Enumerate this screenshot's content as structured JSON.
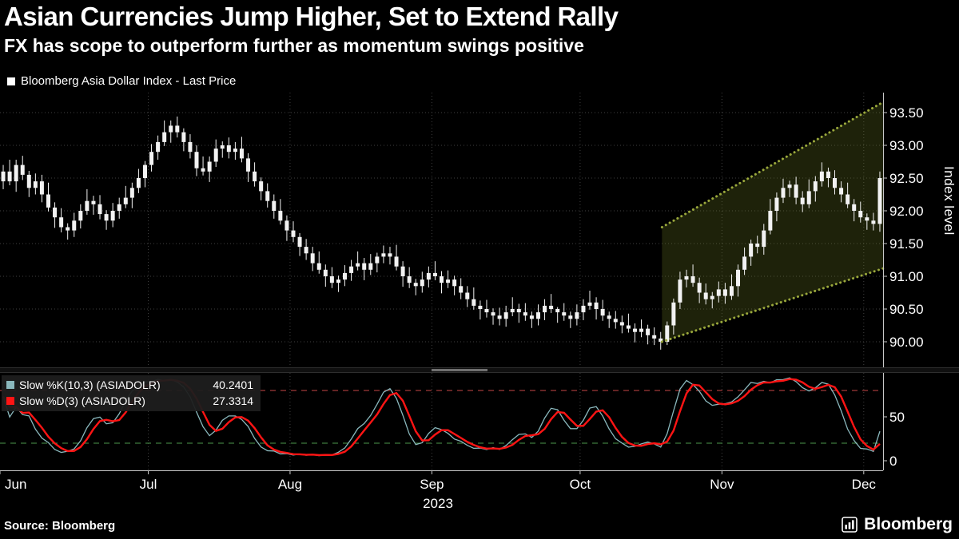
{
  "header": {
    "title": "Asian Currencies Jump Higher, Set to Extend Rally",
    "subtitle": "FX has scope to outperform further as momentum swings positive"
  },
  "legend": {
    "label": "Bloomberg Asia Dollar Index - Last Price",
    "swatch_color": "#ffffff"
  },
  "stoch_legend": {
    "k_label": "Slow %K(10,3) (ASIADOLR)",
    "k_value": "40.2401",
    "k_color": "#8ab8bd",
    "d_label": "Slow %D(3) (ASIADOLR)",
    "d_value": "27.3314",
    "d_color": "#ff1414"
  },
  "footer": {
    "source": "Source: Bloomberg",
    "brand": "Bloomberg"
  },
  "chart_data": {
    "type": "candlestick",
    "title": "Bloomberg Asia Dollar Index - Last Price",
    "y_axis": {
      "label": "Index level",
      "ticks": [
        93.5,
        93.0,
        92.5,
        92.0,
        91.5,
        91.0,
        90.5,
        90.0
      ],
      "min": 89.7,
      "max": 93.7,
      "grid": true
    },
    "x_axis": {
      "month_labels": [
        "Jun",
        "Jul",
        "Aug",
        "Sep",
        "Oct",
        "Nov",
        "Dec"
      ],
      "month_start_index": [
        0,
        23,
        45,
        67,
        90,
        112,
        134
      ],
      "year_label": "2023"
    },
    "candle_color": "#f2f2f2",
    "grid_color": "#3f3f3f",
    "candles": [
      [
        92.45,
        92.7,
        92.33,
        92.6
      ],
      [
        92.6,
        92.78,
        92.39,
        92.45
      ],
      [
        92.45,
        92.78,
        92.29,
        92.7
      ],
      [
        92.7,
        92.84,
        92.47,
        92.55
      ],
      [
        92.55,
        92.61,
        92.21,
        92.35
      ],
      [
        92.35,
        92.57,
        92.25,
        92.45
      ],
      [
        92.45,
        92.55,
        92.13,
        92.25
      ],
      [
        92.25,
        92.43,
        91.99,
        92.05
      ],
      [
        92.05,
        92.13,
        91.74,
        91.9
      ],
      [
        91.9,
        92.04,
        91.67,
        91.75
      ],
      [
        91.75,
        91.81,
        91.56,
        91.7
      ],
      [
        91.7,
        91.97,
        91.6,
        91.85
      ],
      [
        91.85,
        92.1,
        91.73,
        92.0
      ],
      [
        92.0,
        92.33,
        91.94,
        92.15
      ],
      [
        92.15,
        92.23,
        91.94,
        92.1
      ],
      [
        92.1,
        92.24,
        91.87,
        91.95
      ],
      [
        91.95,
        92.01,
        91.71,
        91.85
      ],
      [
        91.85,
        92.12,
        91.75,
        92.0
      ],
      [
        92.0,
        92.2,
        91.88,
        92.1
      ],
      [
        92.1,
        92.38,
        92.04,
        92.2
      ],
      [
        92.2,
        92.43,
        92.04,
        92.35
      ],
      [
        92.35,
        92.64,
        92.27,
        92.5
      ],
      [
        92.5,
        92.76,
        92.36,
        92.7
      ],
      [
        92.7,
        93.02,
        92.6,
        92.9
      ],
      [
        92.9,
        93.15,
        92.78,
        93.05
      ],
      [
        93.05,
        93.38,
        92.99,
        93.2
      ],
      [
        93.2,
        93.38,
        93.04,
        93.3
      ],
      [
        93.3,
        93.44,
        93.12,
        93.2
      ],
      [
        93.2,
        93.26,
        92.91,
        93.05
      ],
      [
        93.05,
        93.17,
        92.8,
        92.9
      ],
      [
        92.9,
        93.0,
        92.53,
        92.65
      ],
      [
        92.65,
        92.83,
        92.54,
        92.6
      ],
      [
        92.6,
        92.83,
        92.44,
        92.75
      ],
      [
        92.75,
        93.09,
        92.67,
        92.95
      ],
      [
        92.95,
        93.06,
        92.81,
        93.0
      ],
      [
        93.0,
        93.12,
        92.8,
        92.9
      ],
      [
        92.9,
        93.05,
        92.78,
        92.95
      ],
      [
        92.95,
        93.13,
        92.74,
        92.8
      ],
      [
        92.8,
        92.88,
        92.44,
        92.6
      ],
      [
        92.6,
        92.74,
        92.37,
        92.45
      ],
      [
        92.45,
        92.51,
        92.16,
        92.3
      ],
      [
        92.3,
        92.42,
        92.05,
        92.15
      ],
      [
        92.15,
        92.25,
        91.88,
        92.0
      ],
      [
        92.0,
        92.18,
        91.79,
        91.85
      ],
      [
        91.85,
        91.93,
        91.54,
        91.7
      ],
      [
        91.7,
        91.84,
        91.52,
        91.6
      ],
      [
        91.6,
        91.66,
        91.31,
        91.45
      ],
      [
        91.45,
        91.57,
        91.25,
        91.35
      ],
      [
        91.35,
        91.45,
        91.08,
        91.2
      ],
      [
        91.2,
        91.38,
        91.04,
        91.1
      ],
      [
        91.1,
        91.18,
        90.84,
        91.0
      ],
      [
        91.0,
        91.14,
        90.82,
        90.9
      ],
      [
        90.9,
        91.01,
        90.76,
        90.95
      ],
      [
        90.95,
        91.17,
        90.85,
        91.05
      ],
      [
        91.05,
        91.25,
        90.93,
        91.15
      ],
      [
        91.15,
        91.38,
        91.09,
        91.2
      ],
      [
        91.2,
        91.28,
        90.94,
        91.1
      ],
      [
        91.1,
        91.34,
        91.02,
        91.2
      ],
      [
        91.2,
        91.36,
        91.06,
        91.3
      ],
      [
        91.3,
        91.47,
        91.2,
        91.35
      ],
      [
        91.35,
        91.45,
        91.18,
        91.3
      ],
      [
        91.3,
        91.48,
        91.09,
        91.15
      ],
      [
        91.15,
        91.23,
        90.84,
        91.0
      ],
      [
        91.0,
        91.14,
        90.82,
        90.9
      ],
      [
        90.9,
        90.96,
        90.71,
        90.85
      ],
      [
        90.85,
        91.07,
        90.75,
        90.95
      ],
      [
        90.95,
        91.15,
        90.83,
        91.05
      ],
      [
        91.05,
        91.23,
        90.94,
        91.0
      ],
      [
        91.0,
        91.08,
        90.74,
        90.9
      ],
      [
        90.9,
        91.09,
        90.82,
        90.95
      ],
      [
        90.95,
        91.01,
        90.71,
        90.85
      ],
      [
        90.85,
        90.97,
        90.65,
        90.75
      ],
      [
        90.75,
        90.85,
        90.53,
        90.65
      ],
      [
        90.65,
        90.83,
        90.49,
        90.55
      ],
      [
        90.55,
        90.63,
        90.34,
        90.5
      ],
      [
        90.5,
        90.64,
        90.37,
        90.45
      ],
      [
        90.45,
        90.51,
        90.26,
        90.4
      ],
      [
        90.4,
        90.52,
        90.25,
        90.35
      ],
      [
        90.35,
        90.55,
        90.23,
        90.45
      ],
      [
        90.45,
        90.68,
        90.39,
        90.5
      ],
      [
        90.5,
        90.58,
        90.29,
        90.45
      ],
      [
        90.45,
        90.59,
        90.32,
        90.4
      ],
      [
        90.4,
        90.46,
        90.21,
        90.35
      ],
      [
        90.35,
        90.57,
        90.25,
        90.45
      ],
      [
        90.45,
        90.65,
        90.33,
        90.55
      ],
      [
        90.55,
        90.73,
        90.44,
        90.5
      ],
      [
        90.5,
        90.53,
        90.29,
        90.45
      ],
      [
        90.45,
        90.59,
        90.32,
        90.4
      ],
      [
        90.4,
        90.46,
        90.21,
        90.35
      ],
      [
        90.35,
        90.57,
        90.25,
        90.45
      ],
      [
        90.45,
        90.65,
        90.33,
        90.55
      ],
      [
        90.55,
        90.78,
        90.49,
        90.6
      ],
      [
        90.6,
        90.68,
        90.34,
        90.5
      ],
      [
        90.5,
        90.64,
        90.32,
        90.4
      ],
      [
        90.4,
        90.46,
        90.21,
        90.35
      ],
      [
        90.35,
        90.47,
        90.2,
        90.3
      ],
      [
        90.3,
        90.4,
        90.13,
        90.25
      ],
      [
        90.25,
        90.43,
        90.14,
        90.2
      ],
      [
        90.2,
        90.28,
        89.99,
        90.15
      ],
      [
        90.15,
        90.34,
        90.07,
        90.2
      ],
      [
        90.2,
        90.26,
        89.96,
        90.1
      ],
      [
        90.1,
        90.22,
        89.95,
        90.05
      ],
      [
        90.05,
        90.15,
        89.88,
        90.0
      ],
      [
        90.0,
        90.31,
        89.95,
        90.25
      ],
      [
        90.25,
        90.66,
        90.11,
        90.6
      ],
      [
        90.6,
        91.07,
        90.5,
        90.95
      ],
      [
        90.95,
        91.1,
        90.83,
        91.0
      ],
      [
        91.0,
        91.18,
        90.84,
        90.9
      ],
      [
        90.9,
        90.98,
        90.59,
        90.75
      ],
      [
        90.75,
        90.89,
        90.57,
        90.65
      ],
      [
        90.65,
        90.76,
        90.51,
        90.7
      ],
      [
        90.7,
        90.92,
        90.6,
        90.8
      ],
      [
        90.8,
        90.9,
        90.58,
        90.7
      ],
      [
        90.7,
        91.03,
        90.64,
        90.85
      ],
      [
        90.85,
        91.18,
        90.69,
        91.1
      ],
      [
        91.1,
        91.44,
        91.02,
        91.3
      ],
      [
        91.3,
        91.56,
        91.16,
        91.5
      ],
      [
        91.5,
        91.62,
        91.35,
        91.45
      ],
      [
        91.45,
        91.8,
        91.33,
        91.7
      ],
      [
        91.7,
        92.18,
        91.64,
        92.0
      ],
      [
        92.0,
        92.28,
        91.84,
        92.2
      ],
      [
        92.2,
        92.49,
        92.12,
        92.35
      ],
      [
        92.35,
        92.46,
        92.21,
        92.4
      ],
      [
        92.4,
        92.52,
        92.1,
        92.2
      ],
      [
        92.2,
        92.3,
        91.98,
        92.1
      ],
      [
        92.1,
        92.48,
        92.04,
        92.3
      ],
      [
        92.3,
        92.53,
        92.14,
        92.45
      ],
      [
        92.45,
        92.74,
        92.37,
        92.6
      ],
      [
        92.6,
        92.66,
        92.36,
        92.5
      ],
      [
        92.5,
        92.62,
        92.25,
        92.35
      ],
      [
        92.35,
        92.45,
        92.13,
        92.25
      ],
      [
        92.25,
        92.43,
        92.04,
        92.1
      ],
      [
        92.1,
        92.18,
        91.84,
        92.0
      ],
      [
        92.0,
        92.14,
        91.82,
        91.9
      ],
      [
        91.9,
        91.96,
        91.71,
        91.85
      ],
      [
        91.85,
        91.97,
        91.7,
        91.8
      ],
      [
        91.8,
        92.6,
        91.68,
        92.5
      ]
    ],
    "channel": {
      "upper": [
        [
          102.2,
          91.75
        ],
        [
          136.5,
          93.66
        ]
      ],
      "lower": [
        [
          102.2,
          90.0
        ],
        [
          136.5,
          91.12
        ]
      ],
      "stroke": "#9aa83c",
      "fill": "rgba(115,130,38,0.26)"
    },
    "stochastic": {
      "k_period": 10,
      "k_smooth": 3,
      "d_period": 3,
      "k_last": 40.2401,
      "d_last": 27.3314,
      "overbought": 80,
      "oversold": 20,
      "ticks": [
        50,
        0
      ],
      "k_color": "#8ab8bd",
      "d_color": "#ff1414",
      "overbought_color": "#a03a3a",
      "oversold_color": "#3d7a3d"
    }
  }
}
